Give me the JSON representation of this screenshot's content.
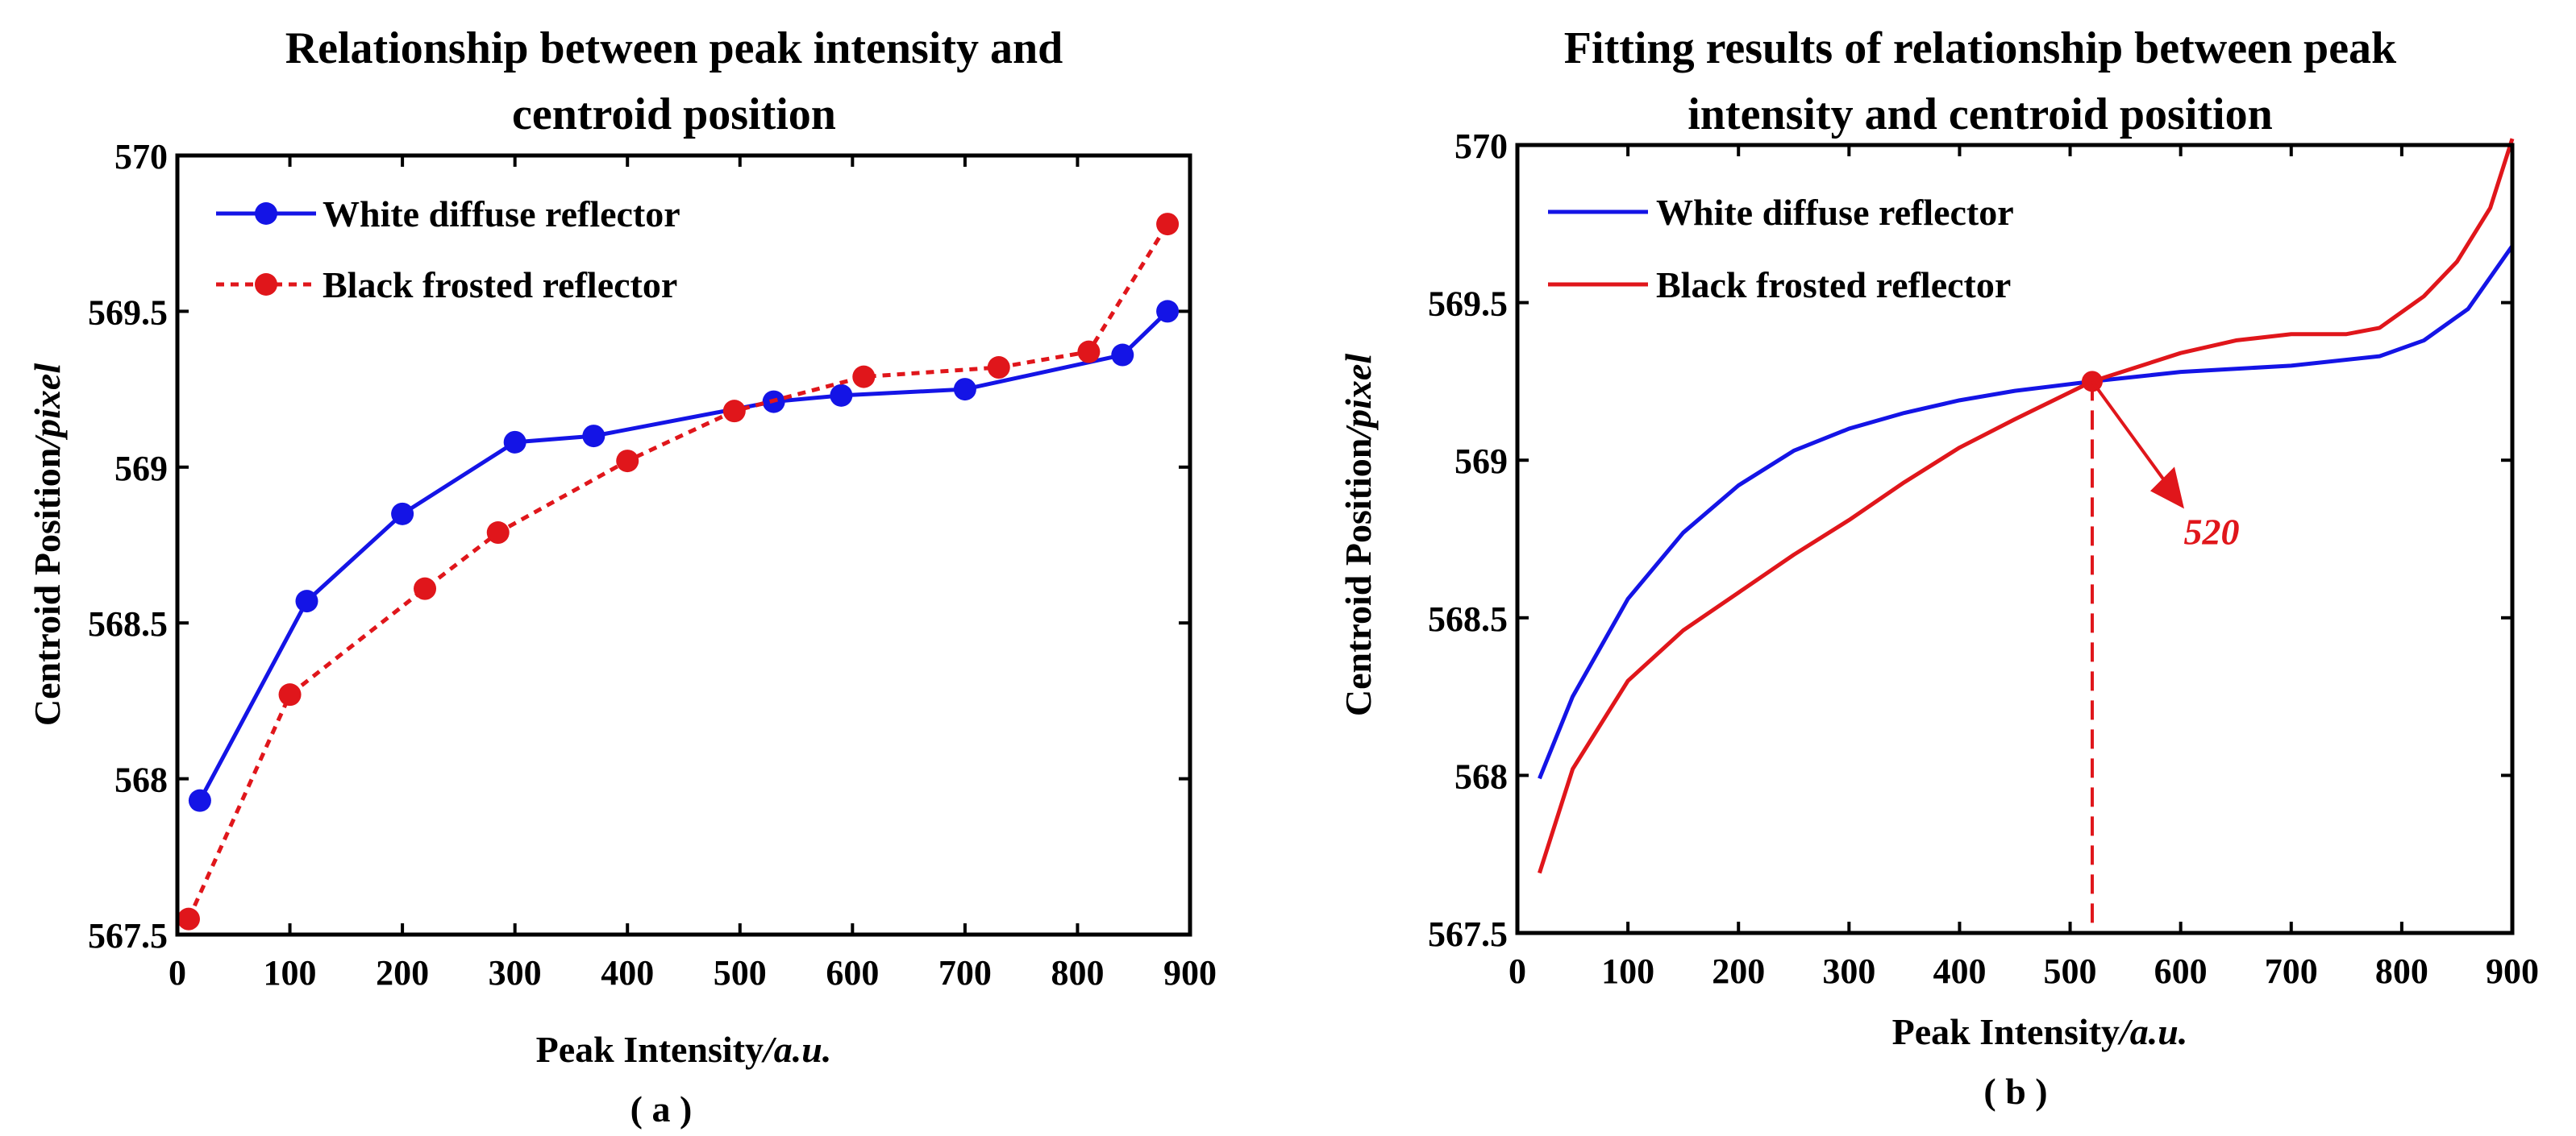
{
  "chart_data": [
    {
      "id": "a",
      "type": "line",
      "title": [
        "Relationship between peak intensity and",
        "centroid position"
      ],
      "xlabel": "Peak Intensity",
      "xlabel_unit": "/a.u.",
      "ylabel": "Centroid Position",
      "ylabel_unit": "/pixel",
      "panel_label": "( a )",
      "xlim": [
        0,
        900
      ],
      "ylim": [
        567.5,
        570
      ],
      "xticks": [
        "0",
        "100",
        "200",
        "300",
        "400",
        "500",
        "600",
        "700",
        "800",
        "900"
      ],
      "yticks": [
        "567.5",
        "568",
        "568.5",
        "569",
        "569.5",
        "570"
      ],
      "legend_position": "top-left",
      "series": [
        {
          "name": "White diffuse reflector",
          "color": "#1414e6",
          "style": "solid",
          "markers": true,
          "x": [
            20,
            115,
            200,
            300,
            370,
            530,
            590,
            700,
            840,
            880
          ],
          "y": [
            567.93,
            568.57,
            568.85,
            569.08,
            569.1,
            569.21,
            569.23,
            569.25,
            569.36,
            569.5
          ]
        },
        {
          "name": "Black frosted reflector",
          "color": "#e0161b",
          "style": "dotted",
          "markers": true,
          "x": [
            10,
            100,
            220,
            285,
            400,
            495,
            610,
            730,
            810,
            880
          ],
          "y": [
            567.55,
            568.27,
            568.61,
            568.79,
            569.02,
            569.18,
            569.29,
            569.32,
            569.37,
            569.78
          ]
        }
      ]
    },
    {
      "id": "b",
      "type": "line",
      "title": [
        "Fitting results of relationship between peak",
        "intensity and centroid position"
      ],
      "xlabel": "Peak Intensity",
      "xlabel_unit": "/a.u.",
      "ylabel": "Centroid Position",
      "ylabel_unit": "/pixel",
      "panel_label": "( b )",
      "xlim": [
        0,
        900
      ],
      "ylim": [
        567.5,
        570
      ],
      "xticks": [
        "0",
        "100",
        "200",
        "300",
        "400",
        "500",
        "600",
        "700",
        "800",
        "900"
      ],
      "yticks": [
        "567.5",
        "568",
        "568.5",
        "569",
        "569.5",
        "570"
      ],
      "legend_position": "top-left",
      "series": [
        {
          "name": "White diffuse reflector",
          "color": "#1414e6",
          "style": "solid",
          "markers": false,
          "x": [
            20,
            50,
            100,
            150,
            200,
            250,
            300,
            350,
            400,
            450,
            520,
            600,
            700,
            780,
            820,
            860,
            900
          ],
          "y": [
            567.99,
            568.25,
            568.56,
            568.77,
            568.92,
            569.03,
            569.1,
            569.15,
            569.19,
            569.22,
            569.25,
            569.28,
            569.3,
            569.33,
            569.38,
            569.48,
            569.68
          ]
        },
        {
          "name": "Black frosted reflector",
          "color": "#e0161b",
          "style": "solid",
          "markers": false,
          "x": [
            20,
            50,
            100,
            150,
            200,
            250,
            300,
            350,
            400,
            450,
            520,
            600,
            650,
            700,
            750,
            780,
            820,
            850,
            880,
            900
          ],
          "y": [
            567.69,
            568.02,
            568.3,
            568.46,
            568.58,
            568.7,
            568.81,
            568.93,
            569.04,
            569.13,
            569.25,
            569.34,
            569.38,
            569.4,
            569.4,
            569.42,
            569.52,
            569.63,
            569.8,
            570.02
          ]
        }
      ],
      "annotation": {
        "label": "520",
        "x": 520,
        "y": 569.25,
        "color": "#e0161b"
      }
    }
  ]
}
